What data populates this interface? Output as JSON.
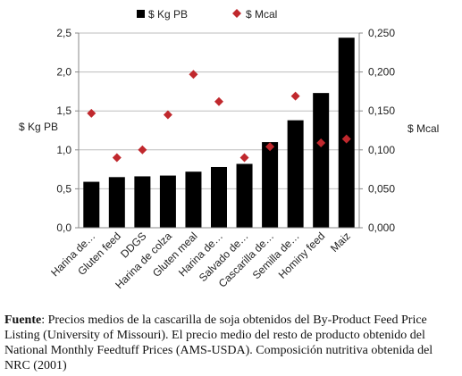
{
  "chart_data": {
    "type": "bar",
    "categories": [
      "Harina de…",
      "Gluten feed",
      "DDGS",
      "Harina de colza",
      "Gluten meal",
      "Harina de…",
      "Salvado de…",
      "Cascarilla de…",
      "Semilla de…",
      "Hominy feed",
      "Maiz"
    ],
    "series": [
      {
        "name": "$ Kg PB",
        "type": "bar",
        "axis": "left",
        "color": "#000000",
        "values": [
          0.59,
          0.65,
          0.66,
          0.67,
          0.72,
          0.78,
          0.82,
          1.1,
          1.38,
          1.73,
          2.44
        ]
      },
      {
        "name": "$ Mcal",
        "type": "scatter",
        "axis": "right",
        "color": "#c0282d",
        "marker": "diamond",
        "values": [
          0.147,
          0.09,
          0.1,
          0.145,
          0.197,
          0.162,
          0.09,
          0.104,
          0.169,
          0.109,
          0.114
        ]
      }
    ],
    "ylabel": "$ Kg PB",
    "y2label": "$ Mcal",
    "ylim": [
      0,
      2.5
    ],
    "y2lim": [
      0,
      0.25
    ],
    "yticks": [
      "0,0",
      "0,5",
      "1,0",
      "1,5",
      "2,0",
      "2,5"
    ],
    "y2ticks": [
      "0,000",
      "0,050",
      "0,100",
      "0,150",
      "0,200",
      "0,250"
    ],
    "grid": true,
    "legend_position": "top"
  },
  "caption": {
    "label": "Fuente",
    "text": ": Precios medios de la cascarilla de soja obtenidos del By-Product Feed Price Listing (University of Missouri). El precio medio del resto de producto obtenido del National Monthly Feedtuff Prices (AMS-USDA). Composición nutritiva obtenida del NRC (2001)"
  }
}
